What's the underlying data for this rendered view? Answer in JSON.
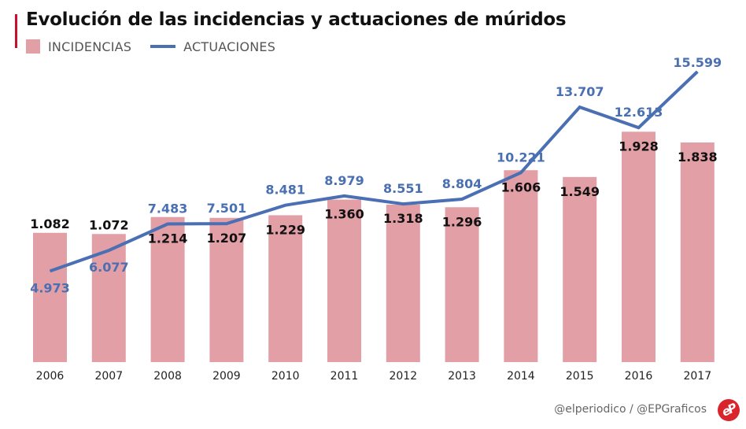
{
  "header": {
    "title": "Evolución de las incidencias y actuaciones de múridos",
    "accent_color": "#c8102e"
  },
  "legend": {
    "bar_label": "INCIDENCIAS",
    "line_label": "ACTUACIONES"
  },
  "footer": {
    "credit": "@elperiodico / @EPGraficos",
    "logo_text": "eP"
  },
  "chart_data": {
    "type": "bar+line",
    "title": "Evolución de las incidencias y actuaciones de múridos",
    "xlabel": "",
    "ylabel": "",
    "categories": [
      "2006",
      "2007",
      "2008",
      "2009",
      "2010",
      "2011",
      "2012",
      "2013",
      "2014",
      "2015",
      "2016",
      "2017"
    ],
    "series": [
      {
        "name": "INCIDENCIAS",
        "type": "bar",
        "color": "#e29fa6",
        "values": [
          1082,
          1072,
          1214,
          1207,
          1229,
          1360,
          1318,
          1296,
          1606,
          1549,
          1928,
          1838
        ],
        "labels": [
          "1.082",
          "1.072",
          "1.214",
          "1.207",
          "1.229",
          "1.360",
          "1.318",
          "1.296",
          "1.606",
          "1.549",
          "1.928",
          "1.838"
        ],
        "label_color": "#111111",
        "ylim": [
          0,
          1838
        ]
      },
      {
        "name": "ACTUACIONES",
        "type": "line",
        "color": "#4a6fb3",
        "values": [
          4973,
          6077,
          7483,
          7501,
          8481,
          8979,
          8551,
          8804,
          10221,
          13707,
          12613,
          15599
        ],
        "labels": [
          "4.973",
          "6.077",
          "7.483",
          "7.501",
          "8.481",
          "8.979",
          "8.551",
          "8.804",
          "10.221",
          "13.707",
          "12.613",
          "15.599"
        ],
        "label_color": "#4a6fb3",
        "ylim": [
          0,
          15599
        ]
      }
    ],
    "grid": false,
    "legend_position": "top-left",
    "label_placement": {
      "bar_labels_above": [
        "2006",
        "2007"
      ],
      "line_labels_below": [
        "2006",
        "2007"
      ]
    }
  }
}
